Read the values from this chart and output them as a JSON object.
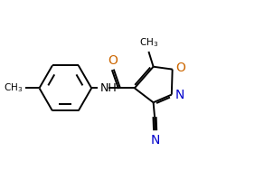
{
  "background": "#ffffff",
  "bond_color": "#000000",
  "atom_colors": {
    "O": "#cc6600",
    "N": "#0000cc",
    "C": "#000000"
  },
  "lw": 1.4,
  "xlim": [
    0,
    9.5
  ],
  "ylim": [
    0,
    6.5
  ],
  "figsize": [
    2.92,
    1.89
  ],
  "dpi": 100
}
